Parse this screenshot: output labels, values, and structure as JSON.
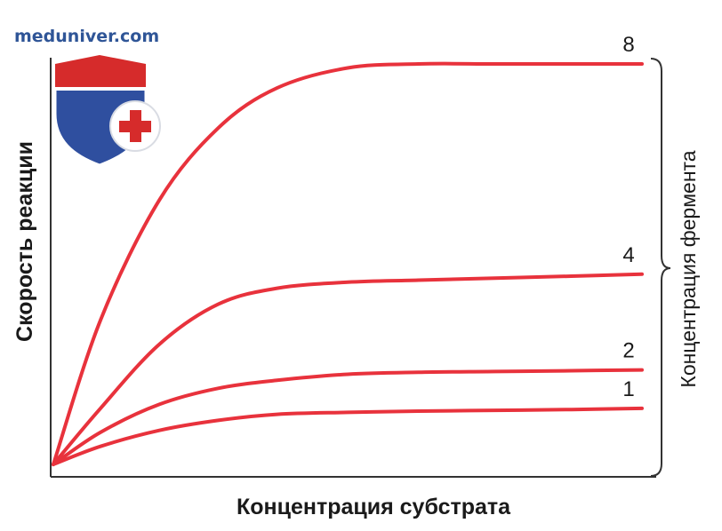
{
  "watermark": {
    "site": "meduniver.com",
    "shield_colors": {
      "red": "#d62b2b",
      "blue": "#2f4f9f",
      "white": "#ffffff"
    }
  },
  "chart_data": {
    "type": "line",
    "xlabel": "Концентрация субстрата",
    "ylabel": "Скорость реакции",
    "brace_label": "Концентрация фермента",
    "grid": false,
    "x": [
      0,
      0.08,
      0.18,
      0.28,
      0.38,
      0.5,
      0.62,
      0.75,
      0.88,
      1.0
    ],
    "series": [
      {
        "name": "8",
        "values": [
          0,
          0.36,
          0.66,
          0.84,
          0.94,
          0.99,
          1.0,
          1.0,
          1.0,
          1.0
        ]
      },
      {
        "name": "4",
        "values": [
          0,
          0.14,
          0.3,
          0.4,
          0.44,
          0.455,
          0.46,
          0.465,
          0.47,
          0.475
        ]
      },
      {
        "name": "2",
        "values": [
          0,
          0.08,
          0.15,
          0.19,
          0.21,
          0.225,
          0.23,
          0.232,
          0.234,
          0.236
        ]
      },
      {
        "name": "1",
        "values": [
          0,
          0.045,
          0.085,
          0.11,
          0.125,
          0.13,
          0.133,
          0.135,
          0.137,
          0.14
        ]
      }
    ],
    "line_color": "#e8323c",
    "xlim": [
      0,
      1
    ],
    "ylim": [
      0,
      1
    ]
  }
}
